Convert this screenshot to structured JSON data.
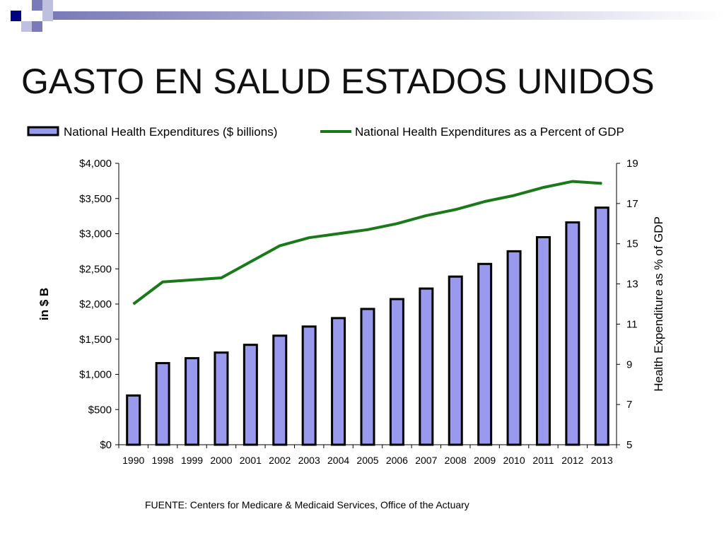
{
  "slide": {
    "title": "GASTO EN SALUD ESTADOS UNIDOS",
    "source": "FUENTE: Centers for Medicare & Medicaid Services, Office of the Actuary",
    "decor_colors": [
      "#000080",
      "#7a7ab8",
      "#bfbfe0"
    ]
  },
  "chart_data": {
    "type": "bar",
    "categories": [
      "1990",
      "1998",
      "1999",
      "2000",
      "2001",
      "2002",
      "2003",
      "2004",
      "2005",
      "2006",
      "2007",
      "2008",
      "2009",
      "2010",
      "2011",
      "2012",
      "2013"
    ],
    "series": [
      {
        "name": "National Health Expenditures ($ billions)",
        "type": "bar",
        "axis": "left",
        "color": "#9999ee",
        "values": [
          700,
          1160,
          1230,
          1310,
          1420,
          1550,
          1680,
          1800,
          1930,
          2070,
          2220,
          2390,
          2570,
          2750,
          2950,
          3160,
          3370
        ]
      },
      {
        "name": "National Health Expenditures as a Percent of GDP",
        "type": "line",
        "axis": "right",
        "color": "#1a7a1a",
        "values": [
          12.0,
          13.1,
          13.2,
          13.3,
          14.1,
          14.9,
          15.3,
          15.5,
          15.7,
          16.0,
          16.4,
          16.7,
          17.1,
          17.4,
          17.8,
          18.1,
          18.0
        ]
      }
    ],
    "left_axis": {
      "label": "in $ B",
      "range": [
        0,
        4000
      ],
      "ticks": [
        "$0",
        "$500",
        "$1,000",
        "$1,500",
        "$2,000",
        "$2,500",
        "$3,000",
        "$3,500",
        "$4,000"
      ]
    },
    "right_axis": {
      "label": "Health Expenditure as % of GDP",
      "range": [
        5,
        19
      ],
      "ticks": [
        "5",
        "7",
        "9",
        "11",
        "13",
        "15",
        "17",
        "19"
      ]
    },
    "legend_position": "top",
    "grid": false
  }
}
